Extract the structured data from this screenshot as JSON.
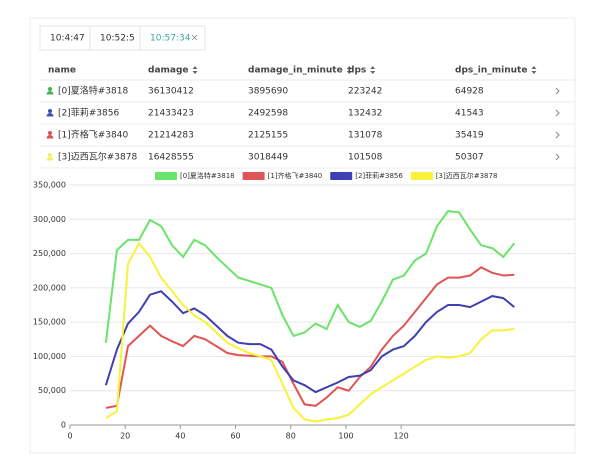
{
  "tabs": [
    {
      "label": "10:4:47"
    },
    {
      "label": "10:52:5"
    },
    {
      "label": "10:57:34",
      "active": true
    }
  ],
  "table": {
    "columns": [
      "name",
      "damage",
      "damage_in_minute",
      "dps",
      "dps_in_minute"
    ],
    "rows": [
      {
        "color": "#4caf50",
        "cells": [
          "[0]夏洛特#3818",
          "36130412",
          "3895690",
          "223242",
          "64928"
        ]
      },
      {
        "color": "#3f51b5",
        "cells": [
          "[2]菲莉#3856",
          "21433423",
          "2492598",
          "132432",
          "41543"
        ]
      },
      {
        "color": "#e05050",
        "cells": [
          "[1]齐格飞#3840",
          "21214283",
          "2125155",
          "131078",
          "35419"
        ]
      },
      {
        "color": "#f5f060",
        "cells": [
          "[3]迈西瓦尔#3878",
          "16428555",
          "3018449",
          "101508",
          "50307"
        ]
      }
    ]
  },
  "chart_data": {
    "type": "line",
    "grid": true,
    "x": [
      13,
      17,
      21,
      25,
      29,
      33,
      37,
      41,
      45,
      49,
      53,
      57,
      61,
      65,
      69,
      73,
      77,
      81,
      85,
      89,
      93,
      97,
      101,
      105,
      109,
      113,
      117,
      121,
      125,
      129,
      133,
      137,
      141,
      145,
      149,
      153,
      157,
      161
    ],
    "series": [
      {
        "name": "[0]夏洛特#3818",
        "color": "#6be36b",
        "values": [
          120000,
          255000,
          270000,
          270000,
          299000,
          290000,
          262000,
          245000,
          270000,
          262000,
          245000,
          230000,
          215000,
          210000,
          205000,
          200000,
          160000,
          130000,
          135000,
          148000,
          140000,
          175000,
          150000,
          143000,
          152000,
          180000,
          212000,
          218000,
          240000,
          250000,
          290000,
          312000,
          310000,
          285000,
          262000,
          258000,
          245000,
          265000
        ]
      },
      {
        "name": "[1]齐格飞#3840",
        "color": "#e05555",
        "values": [
          25000,
          28000,
          115000,
          130000,
          145000,
          130000,
          122000,
          115000,
          130000,
          125000,
          115000,
          105000,
          102000,
          101000,
          100000,
          100000,
          92000,
          60000,
          30000,
          28000,
          40000,
          55000,
          50000,
          70000,
          85000,
          110000,
          130000,
          145000,
          165000,
          185000,
          205000,
          215000,
          215000,
          218000,
          230000,
          222000,
          218000,
          219000
        ]
      },
      {
        "name": "[2]菲莉#3856",
        "color": "#4040b0",
        "values": [
          58000,
          110000,
          148000,
          165000,
          190000,
          195000,
          180000,
          163000,
          170000,
          160000,
          145000,
          130000,
          120000,
          118000,
          118000,
          110000,
          85000,
          65000,
          58000,
          48000,
          55000,
          62000,
          70000,
          72000,
          80000,
          100000,
          110000,
          115000,
          130000,
          150000,
          165000,
          175000,
          175000,
          172000,
          180000,
          188000,
          185000,
          172000
        ]
      },
      {
        "name": "[3]迈西瓦尔#3878",
        "color": "#f7f23a",
        "values": [
          10000,
          20000,
          235000,
          265000,
          245000,
          215000,
          195000,
          175000,
          160000,
          150000,
          135000,
          120000,
          112000,
          105000,
          100000,
          95000,
          60000,
          25000,
          8000,
          5000,
          8000,
          10000,
          15000,
          30000,
          45000,
          55000,
          65000,
          75000,
          85000,
          95000,
          100000,
          98000,
          100000,
          105000,
          125000,
          138000,
          138000,
          140000
        ]
      }
    ],
    "xlim": [
      0,
      183
    ],
    "xticks": [
      0,
      20,
      40,
      60,
      80,
      100,
      120
    ],
    "ylim": [
      0,
      350000
    ],
    "yticks": [
      0,
      {
        "value": 50000,
        "label": "50,000"
      },
      {
        "value": 100000,
        "label": "100,000"
      },
      {
        "value": 150000,
        "label": "150,000"
      },
      {
        "value": 200000,
        "label": "200,000"
      },
      {
        "value": 250000,
        "label": "250,000"
      },
      {
        "value": 300000,
        "label": "300,000"
      },
      {
        "value": 350000,
        "label": "350,000"
      }
    ]
  }
}
